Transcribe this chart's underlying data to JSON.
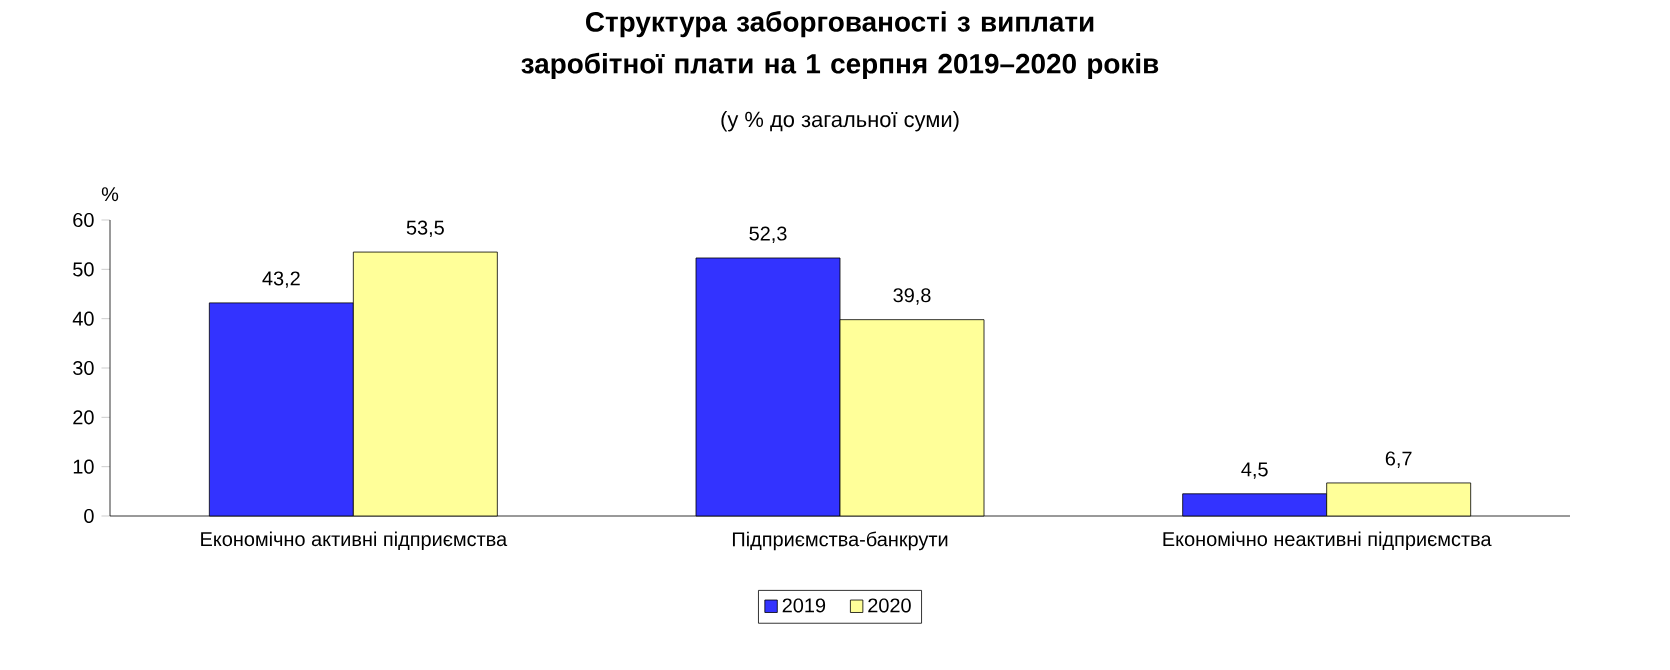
{
  "chart_data": {
    "type": "bar",
    "title": "Структура заборгованості з виплати заробітної плати на 1 серпня 2019–2020 років",
    "subtitle": "(у % до загальної суми)",
    "ylabel": "%",
    "categories": [
      "Економічно активні підприємства",
      "Підприємства-банкрути",
      "Економічно неактивні підприємства"
    ],
    "series": [
      {
        "name": "2019",
        "color": "#3333ff",
        "values": [
          43.2,
          52.3,
          4.5
        ],
        "value_labels": [
          "43,2",
          "52,3",
          "4,5"
        ]
      },
      {
        "name": "2020",
        "color": "#ffff99",
        "values": [
          53.5,
          39.8,
          6.7
        ],
        "value_labels": [
          "53,5",
          "39,8",
          "6,7"
        ]
      }
    ],
    "ylim": [
      0,
      60
    ],
    "yticks": [
      0,
      10,
      20,
      30,
      40,
      50,
      60
    ],
    "legend": "bottom"
  }
}
